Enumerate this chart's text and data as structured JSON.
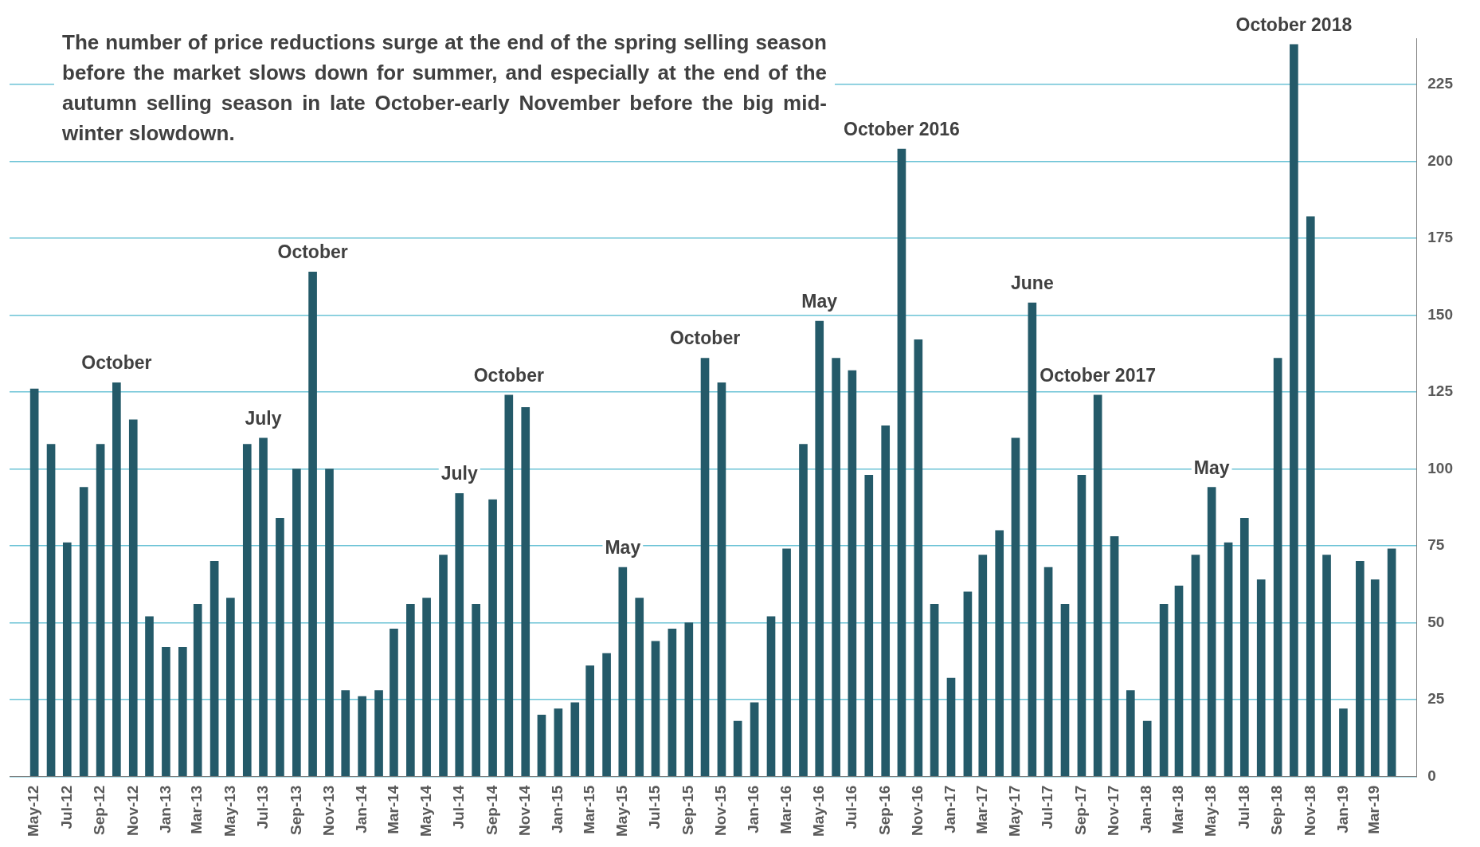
{
  "chart_data": {
    "type": "bar",
    "x": [
      "2012-05",
      "2012-06",
      "2012-07",
      "2012-08",
      "2012-09",
      "2012-10",
      "2012-11",
      "2012-12",
      "2013-01",
      "2013-02",
      "2013-03",
      "2013-04",
      "2013-05",
      "2013-06",
      "2013-07",
      "2013-08",
      "2013-09",
      "2013-10",
      "2013-11",
      "2013-12",
      "2014-01",
      "2014-02",
      "2014-03",
      "2014-04",
      "2014-05",
      "2014-06",
      "2014-07",
      "2014-08",
      "2014-09",
      "2014-10",
      "2014-11",
      "2014-12",
      "2015-01",
      "2015-02",
      "2015-03",
      "2015-04",
      "2015-05",
      "2015-06",
      "2015-07",
      "2015-08",
      "2015-09",
      "2015-10",
      "2015-11",
      "2015-12",
      "2016-01",
      "2016-02",
      "2016-03",
      "2016-04",
      "2016-05",
      "2016-06",
      "2016-07",
      "2016-08",
      "2016-09",
      "2016-10",
      "2016-11",
      "2016-12",
      "2017-01",
      "2017-02",
      "2017-03",
      "2017-04",
      "2017-05",
      "2017-06",
      "2017-07",
      "2017-08",
      "2017-09",
      "2017-10",
      "2017-11",
      "2017-12",
      "2018-01",
      "2018-02",
      "2018-03",
      "2018-04",
      "2018-05",
      "2018-06",
      "2018-07",
      "2018-08",
      "2018-09",
      "2018-10",
      "2018-11",
      "2018-12",
      "2019-01",
      "2019-02",
      "2019-03",
      "2019-04"
    ],
    "values": [
      126,
      108,
      76,
      94,
      108,
      128,
      116,
      52,
      42,
      42,
      56,
      70,
      58,
      108,
      110,
      84,
      100,
      164,
      100,
      28,
      26,
      28,
      48,
      56,
      58,
      72,
      92,
      56,
      90,
      124,
      120,
      20,
      22,
      24,
      36,
      40,
      68,
      58,
      44,
      48,
      50,
      136,
      128,
      18,
      24,
      52,
      74,
      108,
      148,
      136,
      132,
      98,
      114,
      204,
      142,
      56,
      32,
      60,
      72,
      80,
      110,
      154,
      68,
      56,
      98,
      124,
      78,
      28,
      18,
      56,
      62,
      72,
      94,
      76,
      84,
      64,
      136,
      238,
      182,
      72,
      22,
      70,
      64,
      74
    ],
    "color": "#245a69",
    "xlim": [
      "2012-04-16",
      "2019-04-16"
    ],
    "xticks": [
      {
        "value": "2012-05",
        "label": "May-12"
      },
      {
        "value": "2012-07",
        "label": "Jul-12"
      },
      {
        "value": "2012-09",
        "label": "Sep-12"
      },
      {
        "value": "2012-11",
        "label": "Nov-12"
      },
      {
        "value": "2013-01",
        "label": "Jan-13"
      },
      {
        "value": "2013-03",
        "label": "Mar-13"
      },
      {
        "value": "2013-05",
        "label": "May-13"
      },
      {
        "value": "2013-07",
        "label": "Jul-13"
      },
      {
        "value": "2013-09",
        "label": "Sep-13"
      },
      {
        "value": "2013-11",
        "label": "Nov-13"
      },
      {
        "value": "2014-01",
        "label": "Jan-14"
      },
      {
        "value": "2014-03",
        "label": "Mar-14"
      },
      {
        "value": "2014-05",
        "label": "May-14"
      },
      {
        "value": "2014-07",
        "label": "Jul-14"
      },
      {
        "value": "2014-09",
        "label": "Sep-14"
      },
      {
        "value": "2014-11",
        "label": "Nov-14"
      },
      {
        "value": "2015-01",
        "label": "Jan-15"
      },
      {
        "value": "2015-03",
        "label": "Mar-15"
      },
      {
        "value": "2015-05",
        "label": "May-15"
      },
      {
        "value": "2015-07",
        "label": "Jul-15"
      },
      {
        "value": "2015-09",
        "label": "Sep-15"
      },
      {
        "value": "2015-11",
        "label": "Nov-15"
      },
      {
        "value": "2016-01",
        "label": "Jan-16"
      },
      {
        "value": "2016-03",
        "label": "Mar-16"
      },
      {
        "value": "2016-05",
        "label": "May-16"
      },
      {
        "value": "2016-07",
        "label": "Jul-16"
      },
      {
        "value": "2016-09",
        "label": "Sep-16"
      },
      {
        "value": "2016-11",
        "label": "Nov-16"
      },
      {
        "value": "2017-01",
        "label": "Jan-17"
      },
      {
        "value": "2017-03",
        "label": "Mar-17"
      },
      {
        "value": "2017-05",
        "label": "May-17"
      },
      {
        "value": "2017-07",
        "label": "Jul-17"
      },
      {
        "value": "2017-09",
        "label": "Sep-17"
      },
      {
        "value": "2017-11",
        "label": "Nov-17"
      },
      {
        "value": "2018-01",
        "label": "Jan-18"
      },
      {
        "value": "2018-03",
        "label": "Mar-18"
      },
      {
        "value": "2018-05",
        "label": "May-18"
      },
      {
        "value": "2018-07",
        "label": "Jul-18"
      },
      {
        "value": "2018-09",
        "label": "Sep-18"
      },
      {
        "value": "2018-11",
        "label": "Nov-18"
      },
      {
        "value": "2019-01",
        "label": "Jan-19"
      },
      {
        "value": "2019-03",
        "label": "Mar-19"
      }
    ],
    "ylim": [
      0,
      240
    ],
    "yticks": [
      0,
      25,
      50,
      75,
      100,
      125,
      150,
      175,
      200,
      225
    ],
    "grid": "y",
    "annotations": [
      "The number of price reductions surge at the end of the spring selling season before the market slows down for summer, and especially at the end of the autumn selling season in late October-early November before the big mid-winter slowdown.",
      {
        "text": "October",
        "x": "2012-10",
        "y": 128
      },
      {
        "text": "July",
        "x": "2013-07",
        "y": 110
      },
      {
        "text": "October",
        "x": "2013-10",
        "y": 164
      },
      {
        "text": "July",
        "x": "2014-07",
        "y": 92
      },
      {
        "text": "October",
        "x": "2014-10",
        "y": 124
      },
      {
        "text": "May",
        "x": "2015-05",
        "y": 68
      },
      {
        "text": "October",
        "x": "2015-10",
        "y": 136
      },
      {
        "text": "May",
        "x": "2016-05",
        "y": 148
      },
      {
        "text": "October 2016",
        "x": "2016-10",
        "y": 204
      },
      {
        "text": "June",
        "x": "2017-06",
        "y": 154
      },
      {
        "text": "October 2017",
        "x": "2017-10",
        "y": 124
      },
      {
        "text": "May",
        "x": "2018-05",
        "y": 94
      },
      {
        "text": "October 2018",
        "x": "2018-10",
        "y": 238
      }
    ]
  }
}
